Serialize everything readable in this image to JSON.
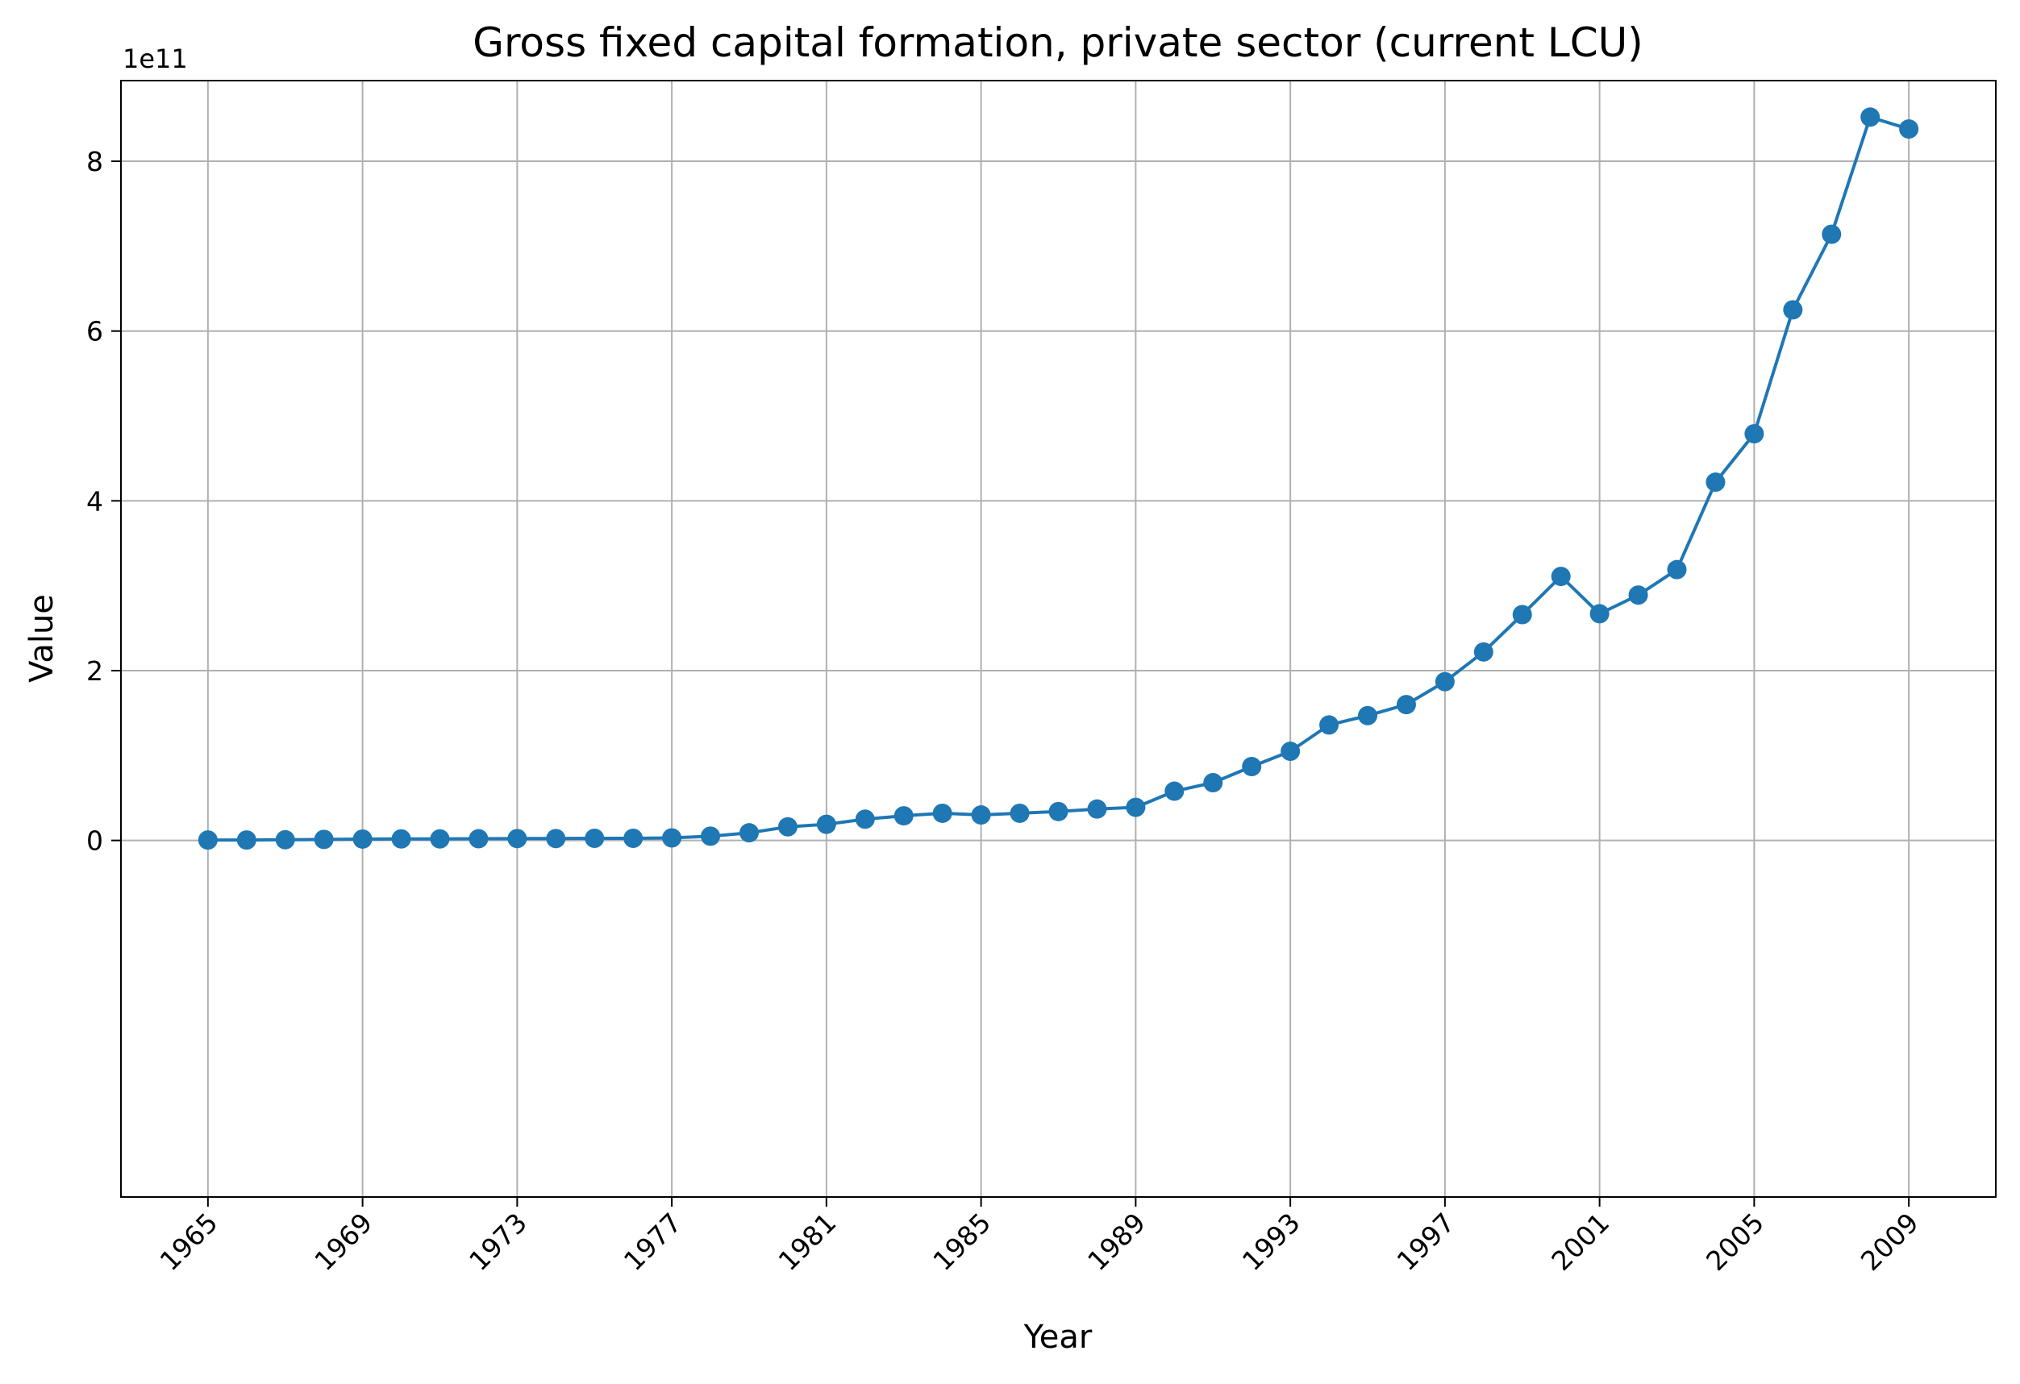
{
  "chart_data": {
    "type": "line",
    "title": "Gross fixed capital formation, private sector (current LCU)",
    "xlabel": "Year",
    "ylabel": "Value",
    "y_offset_label": "1e11",
    "y_scale_factor": 100000000000,
    "xlim": [
      1962.75,
      2011.25
    ],
    "ylim": [
      -4.2,
      8.95
    ],
    "x_ticks": [
      1965,
      1969,
      1973,
      1977,
      1981,
      1985,
      1989,
      1993,
      1997,
      2001,
      2005,
      2009
    ],
    "y_ticks": [
      0,
      2,
      4,
      6,
      8
    ],
    "grid": true,
    "marker": "circle",
    "colors": {
      "series": "#1f77b4",
      "grid": "#b0b0b0",
      "axes": "#000000"
    },
    "series": [
      {
        "x": [
          1965,
          1966,
          1967,
          1968,
          1969,
          1970,
          1971,
          1972,
          1973,
          1974,
          1975,
          1976,
          1977,
          1978,
          1979,
          1980,
          1981,
          1982,
          1983,
          1984,
          1985,
          1986,
          1987,
          1988,
          1989,
          1990,
          1991,
          1992,
          1993,
          1994,
          1995,
          1996,
          1997,
          1998,
          1999,
          2000,
          2001,
          2002,
          2003,
          2004,
          2005,
          2006,
          2007,
          2008,
          2009
        ],
        "y": [
          0.005,
          0.005,
          0.008,
          0.012,
          0.016,
          0.018,
          0.018,
          0.02,
          0.022,
          0.022,
          0.025,
          0.025,
          0.03,
          0.05,
          0.09,
          0.16,
          0.19,
          0.25,
          0.29,
          0.32,
          0.3,
          0.32,
          0.34,
          0.37,
          0.39,
          0.58,
          0.68,
          0.87,
          1.05,
          1.36,
          1.47,
          1.6,
          1.87,
          2.22,
          2.66,
          3.11,
          2.67,
          2.89,
          3.19,
          4.22,
          4.79,
          6.25,
          7.14,
          8.52,
          8.38
        ]
      }
    ]
  }
}
